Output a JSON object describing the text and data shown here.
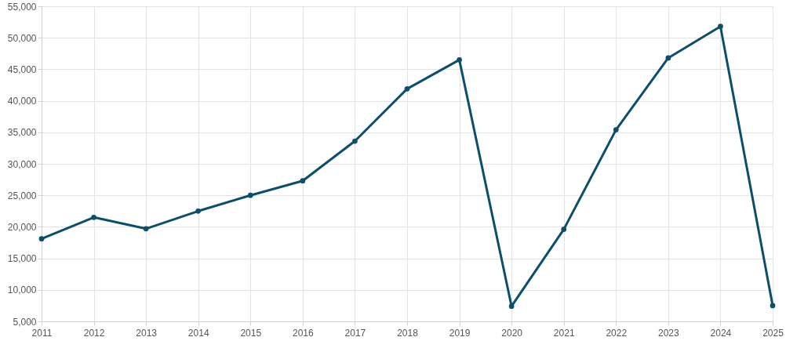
{
  "chart_data": {
    "type": "line",
    "categories": [
      "2011",
      "2012",
      "2013",
      "2014",
      "2015",
      "2016",
      "2017",
      "2018",
      "2019",
      "2020",
      "2021",
      "2022",
      "2023",
      "2024",
      "2025"
    ],
    "series": [
      {
        "color": "#0b4f6c",
        "values": [
          18100,
          21500,
          19700,
          22500,
          25000,
          27300,
          33600,
          41900,
          46500,
          7400,
          19600,
          35400,
          46800,
          51800,
          7500
        ]
      }
    ],
    "ylim": [
      5000,
      55000
    ],
    "yticks": [
      {
        "value": 5000,
        "label": "5,000"
      },
      {
        "value": 10000,
        "label": "10,000"
      },
      {
        "value": 15000,
        "label": "15,000"
      },
      {
        "value": 20000,
        "label": "20,000"
      },
      {
        "value": 25000,
        "label": "25,000"
      },
      {
        "value": 30000,
        "label": "30,000"
      },
      {
        "value": 35000,
        "label": "35,000"
      },
      {
        "value": 40000,
        "label": "40,000"
      },
      {
        "value": 45000,
        "label": "45,000"
      },
      {
        "value": 50000,
        "label": "50,000"
      },
      {
        "value": 55000,
        "label": "55,000"
      }
    ],
    "grid": true,
    "marker": "circle",
    "line_style": "solid"
  }
}
